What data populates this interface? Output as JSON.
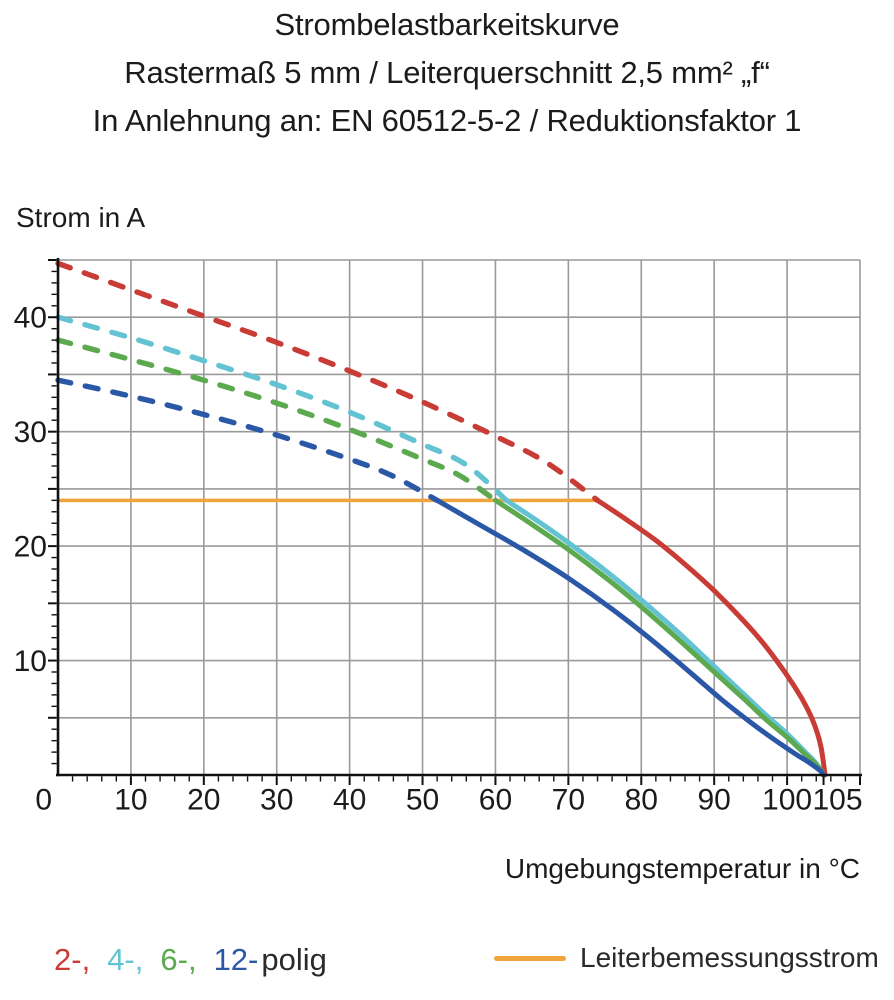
{
  "title": {
    "line1": "Strombelastbarkeitskurve",
    "line2": "Rastermaß 5 mm / Leiterquerschnitt 2,5 mm² „f“",
    "line3": "In Anlehnung an: EN 60512-5-2 / Reduktionsfaktor 1"
  },
  "legend": {
    "pole_items": [
      {
        "label": "2-,",
        "series": "2-polig"
      },
      {
        "label": "4-,",
        "series": "4-polig"
      },
      {
        "label": "6-,",
        "series": "6-polig"
      },
      {
        "label": "12-",
        "series": "12-polig"
      }
    ],
    "poles_suffix": "polig",
    "reference_label": "Leiterbemessungsstrom"
  },
  "chart_data": {
    "type": "line",
    "title": "Strombelastbarkeitskurve",
    "xlabel": "Umgebungstemperatur in °C",
    "ylabel": "Strom in A",
    "xlim": [
      0,
      110
    ],
    "ylim": [
      0,
      45
    ],
    "grid": "major grid, 10 °C by 5 A",
    "legend_position": "bottom",
    "x_ticks": [
      {
        "value": 10,
        "label": "10"
      },
      {
        "value": 20,
        "label": "20"
      },
      {
        "value": 30,
        "label": "30"
      },
      {
        "value": 40,
        "label": "40"
      },
      {
        "value": 50,
        "label": "50"
      },
      {
        "value": 60,
        "label": "60"
      },
      {
        "value": 70,
        "label": "70"
      },
      {
        "value": 80,
        "label": "80"
      },
      {
        "value": 90,
        "label": "90"
      },
      {
        "value": 100,
        "label": "100"
      },
      {
        "value": 105,
        "label": "105",
        "dx": 14
      }
    ],
    "y_ticks": [
      {
        "value": 10,
        "label": "10"
      },
      {
        "value": 20,
        "label": "20"
      },
      {
        "value": 30,
        "label": "30"
      },
      {
        "value": 40,
        "label": "40"
      }
    ],
    "origin_label": "0",
    "colors": {
      "grid": "#9a9a9a",
      "axis": "#111111",
      "text": "#1b1b1b"
    },
    "series": [
      {
        "name": "2-polig",
        "color": "#c93c35",
        "dashed_then_solid": true,
        "points_dashed": [
          [
            0,
            44.7
          ],
          [
            10,
            42.4
          ],
          [
            20,
            40.1
          ],
          [
            30,
            37.8
          ],
          [
            40,
            35.3
          ],
          [
            50,
            32.6
          ],
          [
            60,
            29.6
          ],
          [
            67,
            27.3
          ],
          [
            74,
            24
          ]
        ],
        "points_solid": [
          [
            74,
            24
          ],
          [
            78,
            22.3
          ],
          [
            82,
            20.5
          ],
          [
            86,
            18.4
          ],
          [
            90,
            16.1
          ],
          [
            94,
            13.5
          ],
          [
            97,
            11.3
          ],
          [
            100,
            8.7
          ],
          [
            102,
            6.7
          ],
          [
            103.5,
            4.8
          ],
          [
            104.6,
            2.6
          ],
          [
            105.2,
            0
          ]
        ]
      },
      {
        "name": "4-polig",
        "color": "#64c3d2",
        "dashed_then_solid": true,
        "points_dashed": [
          [
            0,
            40
          ],
          [
            10,
            38.2
          ],
          [
            20,
            36.2
          ],
          [
            30,
            34.1
          ],
          [
            40,
            31.7
          ],
          [
            50,
            28.9
          ],
          [
            56,
            27.1
          ],
          [
            61.5,
            24
          ]
        ],
        "points_solid": [
          [
            61.5,
            24
          ],
          [
            66,
            22.1
          ],
          [
            70,
            20.3
          ],
          [
            75,
            17.9
          ],
          [
            80,
            15.3
          ],
          [
            85,
            12.5
          ],
          [
            90,
            9.5
          ],
          [
            94,
            7.1
          ],
          [
            97,
            5.3
          ],
          [
            100,
            3.6
          ],
          [
            102.5,
            2.0
          ],
          [
            104,
            1.0
          ],
          [
            105,
            0
          ]
        ]
      },
      {
        "name": "6-polig",
        "color": "#5ca94f",
        "dashed_then_solid": true,
        "points_dashed": [
          [
            0,
            38
          ],
          [
            10,
            36.3
          ],
          [
            20,
            34.5
          ],
          [
            30,
            32.5
          ],
          [
            40,
            30.2
          ],
          [
            50,
            27.6
          ],
          [
            55,
            26.2
          ],
          [
            60,
            24
          ]
        ],
        "points_solid": [
          [
            60,
            24
          ],
          [
            65,
            21.9
          ],
          [
            70,
            19.7
          ],
          [
            75,
            17.3
          ],
          [
            80,
            14.7
          ],
          [
            85,
            11.9
          ],
          [
            90,
            9.0
          ],
          [
            94,
            6.7
          ],
          [
            97,
            4.9
          ],
          [
            100,
            3.3
          ],
          [
            102.5,
            1.8
          ],
          [
            104,
            0.9
          ],
          [
            105,
            0
          ]
        ]
      },
      {
        "name": "12-polig",
        "color": "#2b57a7",
        "dashed_then_solid": true,
        "points_dashed": [
          [
            0,
            34.5
          ],
          [
            10,
            33.1
          ],
          [
            20,
            31.5
          ],
          [
            30,
            29.7
          ],
          [
            40,
            27.6
          ],
          [
            46,
            26.1
          ],
          [
            52,
            24
          ]
        ],
        "points_solid": [
          [
            52,
            24
          ],
          [
            58,
            21.8
          ],
          [
            64,
            19.6
          ],
          [
            70,
            17.2
          ],
          [
            76,
            14.5
          ],
          [
            82,
            11.5
          ],
          [
            87,
            8.8
          ],
          [
            91,
            6.6
          ],
          [
            95,
            4.6
          ],
          [
            98,
            3.2
          ],
          [
            101,
            1.9
          ],
          [
            103,
            1.1
          ],
          [
            104.5,
            0.4
          ],
          [
            105,
            0
          ]
        ]
      }
    ],
    "reference_line": {
      "label": "Leiterbemessungsstrom",
      "value_A": 24,
      "from_C": 0,
      "to_C": 74,
      "color": "#f2a43c"
    }
  }
}
